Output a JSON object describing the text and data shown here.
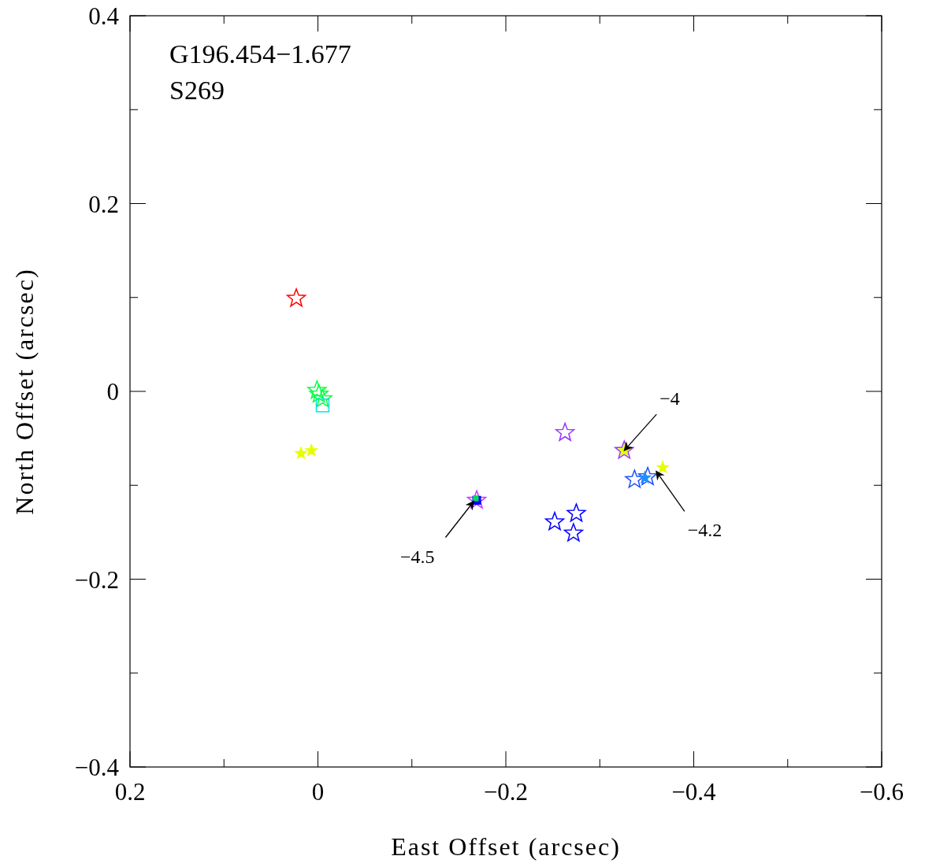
{
  "chart_data": {
    "type": "scatter",
    "xlabel": "East Offset (arcsec)",
    "ylabel": "North Offset (arcsec)",
    "xlim": [
      0.2,
      -0.6
    ],
    "ylim": [
      -0.4,
      0.4
    ],
    "xticks": [
      0.2,
      {
        "value": 0.1,
        "label": null
      },
      0,
      {
        "value": -0.1,
        "label": null
      },
      {
        "value": -0.2,
        "label": "−0.2"
      },
      {
        "value": -0.3,
        "label": null
      },
      {
        "value": -0.4,
        "label": "−0.4"
      },
      {
        "value": -0.5,
        "label": null
      },
      {
        "value": -0.6,
        "label": "−0.6"
      }
    ],
    "yticks": [
      {
        "value": -0.4,
        "label": "−0.4"
      },
      {
        "value": -0.3,
        "label": null
      },
      {
        "value": -0.2,
        "label": "−0.2"
      },
      {
        "value": -0.1,
        "label": null
      },
      0,
      {
        "value": 0.1,
        "label": null
      },
      0.2,
      {
        "value": 0.3,
        "label": null
      },
      0.4
    ],
    "grid": false,
    "annotations": [
      "G196.454−1.677",
      "S269",
      {
        "text": "−4",
        "x": -0.326,
        "y": -0.063
      },
      {
        "text": "−4.2",
        "x": -0.36,
        "y": -0.085
      },
      {
        "text": "−4.5",
        "x": -0.166,
        "y": -0.117
      }
    ],
    "series": [
      {
        "color": "#ff0000",
        "marker": "star",
        "x": [
          0.023
        ],
        "values": [
          0.099
        ]
      },
      {
        "color": "#00ff40",
        "marker": "star",
        "x": [
          0.001,
          -0.001,
          -0.005
        ],
        "values": [
          0.001,
          -0.003,
          -0.008
        ]
      },
      {
        "color": "#00e5e5",
        "marker": "square",
        "x": [
          -0.005
        ],
        "values": [
          -0.015
        ]
      },
      {
        "color": "#9933ff",
        "marker": "star",
        "x": [
          -0.263,
          -0.326
        ],
        "values": [
          -0.044,
          -0.063
        ]
      },
      {
        "color": "#e5ff00",
        "marker": "star",
        "x": [
          0.018,
          0.007,
          -0.326,
          -0.367
        ],
        "values": [
          -0.066,
          -0.063,
          -0.063,
          -0.081
        ]
      },
      {
        "color": "#1e50ff",
        "marker": "star",
        "x": [
          -0.337,
          -0.351
        ],
        "values": [
          -0.094,
          -0.091
        ]
      },
      {
        "color": "#1e90ff",
        "marker": "star",
        "x": [
          -0.348
        ],
        "values": [
          -0.092
        ]
      },
      {
        "color": "#0000ff",
        "marker": "star",
        "x": [
          -0.252,
          -0.275,
          -0.272
        ],
        "values": [
          -0.139,
          -0.13,
          -0.151
        ]
      },
      {
        "color": "#cc33ff",
        "marker": "star",
        "x": [
          -0.169
        ],
        "values": [
          -0.116
        ]
      },
      {
        "color": "#0000ff",
        "marker": "square",
        "x": [
          -0.169
        ],
        "values": [
          -0.116
        ]
      },
      {
        "color": "#00dd55",
        "marker": "square",
        "x": [
          -0.168
        ],
        "values": [
          -0.114
        ]
      }
    ]
  }
}
